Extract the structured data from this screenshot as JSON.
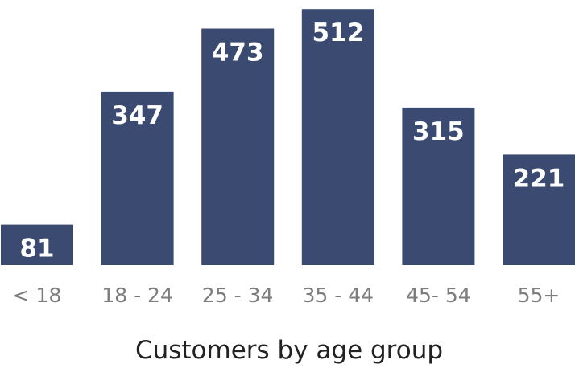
{
  "chart_data": {
    "type": "bar",
    "categories": [
      "< 18",
      "18 - 24",
      "25 - 34",
      "35 - 44",
      "45- 54",
      "55+"
    ],
    "values": [
      81,
      347,
      473,
      512,
      315,
      221
    ],
    "title": "",
    "xlabel": "Customers by age group",
    "ylabel": "",
    "ylim": [
      0,
      530
    ],
    "data_labels": true,
    "grid": false,
    "legend": "none",
    "colors": {
      "bar": "#3b4a70",
      "bar_label": "#ffffff",
      "tick_label": "#7d7d7d",
      "axis_title": "#222222"
    }
  }
}
